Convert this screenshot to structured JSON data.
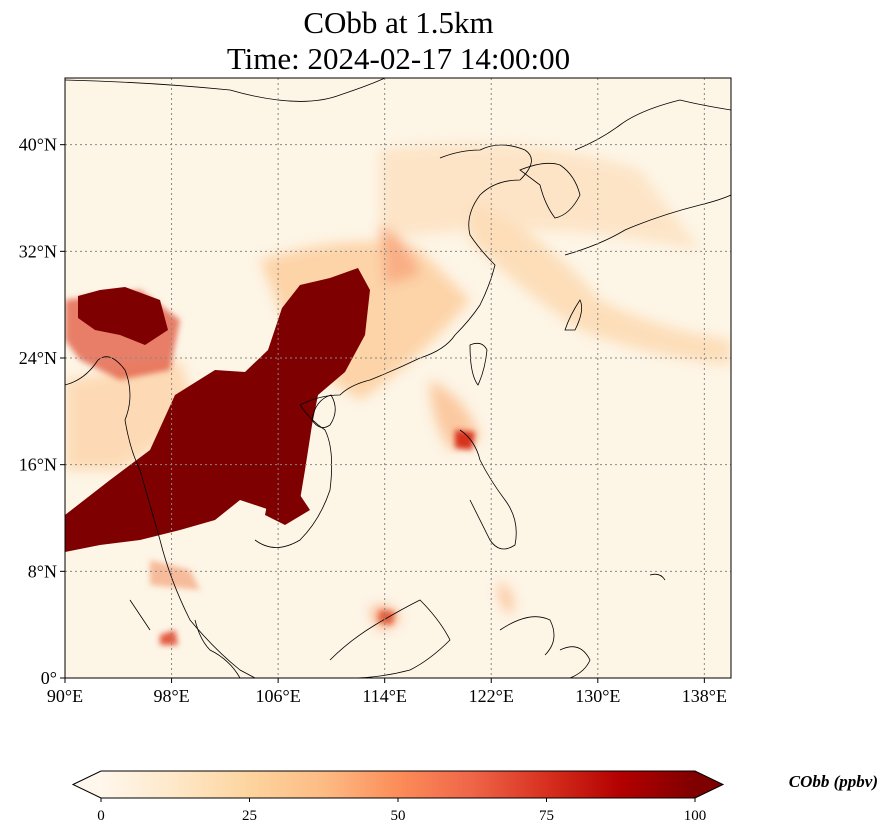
{
  "map": {
    "title_line1": "CObb at 1.5km",
    "title_line2": "Time: 2024-02-17 14:00:00",
    "variable": "CObb",
    "level": "1.5km",
    "time": "2024-02-17 14:00:00",
    "projection": "PlateCarree",
    "extent": {
      "lon_min": 90,
      "lon_max": 140,
      "lat_min": 0,
      "lat_max": 45
    },
    "gridlines": "dotted",
    "lon_ticks": [
      {
        "value": 90,
        "label": "90°E"
      },
      {
        "value": 98,
        "label": "98°E"
      },
      {
        "value": 106,
        "label": "106°E"
      },
      {
        "value": 114,
        "label": "114°E"
      },
      {
        "value": 122,
        "label": "122°E"
      },
      {
        "value": 130,
        "label": "130°E"
      },
      {
        "value": 138,
        "label": "138°E"
      }
    ],
    "lat_ticks": [
      {
        "value": 0,
        "label": "0°"
      },
      {
        "value": 8,
        "label": "8°N"
      },
      {
        "value": 16,
        "label": "16°N"
      },
      {
        "value": 24,
        "label": "24°N"
      },
      {
        "value": 32,
        "label": "32°N"
      },
      {
        "value": 40,
        "label": "40°N"
      }
    ]
  },
  "colorbar": {
    "label": "CObb (ppbv)",
    "min": 0,
    "max": 100,
    "extend": "both",
    "colormap": "OrRd",
    "colors": [
      "#fff7ec",
      "#fee8c8",
      "#fdd49e",
      "#fdbb84",
      "#fc8d59",
      "#ef6548",
      "#d7301f",
      "#b30000",
      "#7f0000"
    ],
    "ticks": [
      {
        "value": 0,
        "label": "0"
      },
      {
        "value": 25,
        "label": "25"
      },
      {
        "value": 50,
        "label": "50"
      },
      {
        "value": 75,
        "label": "75"
      },
      {
        "value": 100,
        "label": "100"
      }
    ]
  },
  "colors": {
    "background": "#fdf5e6",
    "plume_high": "#7f0000",
    "coastline": "#000000",
    "grid": "#888888"
  }
}
